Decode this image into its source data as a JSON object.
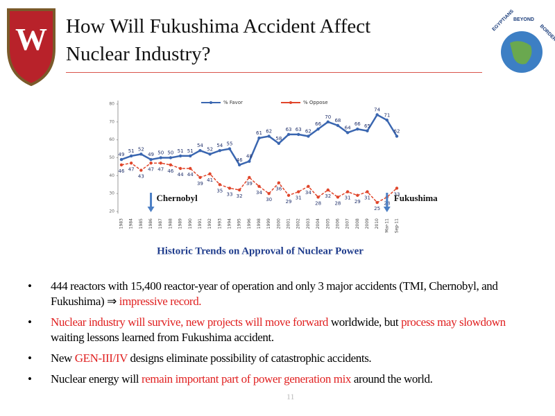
{
  "title": [
    "How Will Fukushima Accident Affect",
    "Nuclear Industry?"
  ],
  "logo_left": "W",
  "logo_right": [
    "EGYPTIANS",
    "BEYOND",
    "BORDERS"
  ],
  "chart_data": {
    "type": "line",
    "categories": [
      "1983",
      "1984",
      "1985",
      "1986",
      "1987",
      "1988",
      "1989",
      "1990",
      "1991",
      "1992",
      "1993",
      "1994",
      "1995",
      "1996",
      "1998",
      "1999",
      "2000",
      "2001",
      "2002",
      "2003",
      "2004",
      "2005",
      "2006",
      "2007",
      "2008",
      "2009",
      "2010",
      "Mar-11",
      "Sep-11"
    ],
    "series": [
      {
        "name": "% Favor",
        "color": "#3a66b0",
        "values": [
          49,
          51,
          52,
          49,
          50,
          50,
          51,
          51,
          54,
          52,
          54,
          55,
          46,
          48,
          61,
          62,
          58,
          63,
          63,
          62,
          66,
          70,
          68,
          64,
          66,
          65,
          74,
          71,
          62
        ]
      },
      {
        "name": "% Oppose",
        "color": "#e0452a",
        "values": [
          46,
          47,
          43,
          47,
          47,
          46,
          44,
          44,
          39,
          41,
          35,
          33,
          32,
          39,
          34,
          30,
          36,
          29,
          31,
          34,
          28,
          32,
          28,
          31,
          29,
          31,
          25,
          28,
          33
        ]
      }
    ],
    "ylim": [
      20,
      80
    ],
    "yticks": [
      20,
      30,
      40,
      50,
      60,
      70,
      80
    ],
    "annotations": [
      {
        "text": "Chernobyl",
        "category": 3
      },
      {
        "text": "Fukushima",
        "category": 27
      }
    ],
    "caption": "Historic Trends on Approval of Nuclear Power"
  },
  "bullets": [
    {
      "runs": [
        {
          "text": "444 reactors with 15,400 reactor-year of operation and only 3 major accidents (TMI, Chernobyl, and Fukushima) ⇒ ",
          "highlight": false
        },
        {
          "text": "impressive record.",
          "highlight": true
        }
      ]
    },
    {
      "runs": [
        {
          "text": "Nuclear industry will survive, new projects will move forward",
          "highlight": true
        },
        {
          "text": " worldwide, but ",
          "highlight": false
        },
        {
          "text": "process may slowdown",
          "highlight": true
        },
        {
          "text": " waiting lessons learned from Fukushima accident.",
          "highlight": false
        }
      ]
    },
    {
      "runs": [
        {
          "text": "New ",
          "highlight": false
        },
        {
          "text": "GEN-III/IV",
          "highlight": true
        },
        {
          "text": " designs eliminate possibility of catastrophic accidents.",
          "highlight": false
        }
      ]
    },
    {
      "runs": [
        {
          "text": "Nuclear energy will ",
          "highlight": false
        },
        {
          "text": "remain important part of  power generation mix",
          "highlight": true
        },
        {
          "text": " around the world.",
          "highlight": false
        }
      ]
    }
  ],
  "page_number": "11"
}
